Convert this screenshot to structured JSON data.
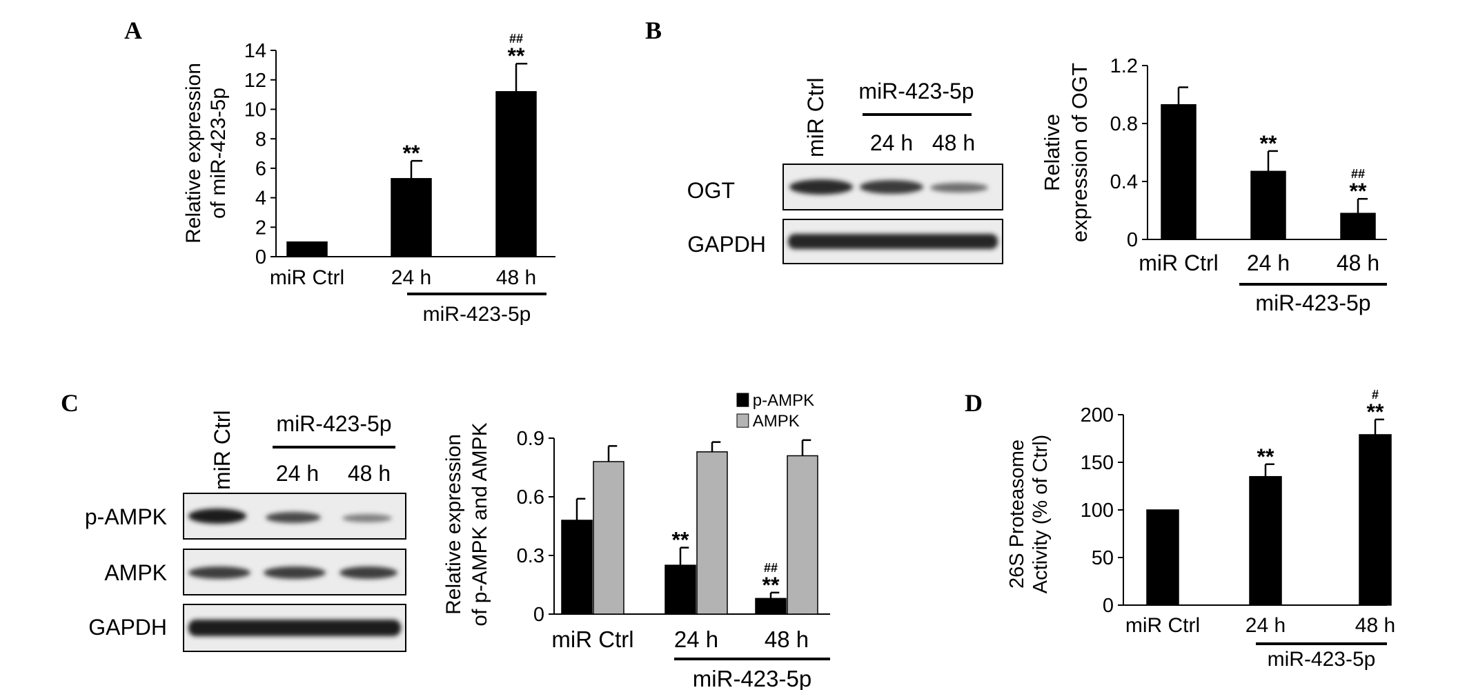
{
  "panel_labels": [
    "A",
    "B",
    "C",
    "D"
  ],
  "blots": {
    "B": {
      "lanes": [
        "miR Ctrl",
        "24 h",
        "48 h"
      ],
      "group": "miR-423-5p",
      "rows": [
        "OGT",
        "GAPDH"
      ]
    },
    "C": {
      "lanes": [
        "miR Ctrl",
        "24 h",
        "48 h"
      ],
      "group": "miR-423-5p",
      "rows": [
        "p-AMPK",
        "AMPK",
        "GAPDH"
      ]
    }
  },
  "colors": {
    "black": "#000000",
    "gray": "#b3b3b3"
  },
  "chart_data": [
    {
      "panel": "A",
      "type": "bar",
      "ylabel": "Relative expression of miR-423-5p",
      "categories": [
        "miR Ctrl",
        "24 h",
        "48 h"
      ],
      "group_label": "miR-423-5p",
      "ylim": [
        0,
        14
      ],
      "yticks": [
        0,
        2,
        4,
        6,
        8,
        10,
        12,
        14
      ],
      "series": [
        {
          "values": [
            1.0,
            5.3,
            11.2
          ],
          "errors": [
            0,
            1.2,
            1.9
          ],
          "color": "#000000"
        }
      ],
      "annotations": [
        {
          "category": "24 h",
          "text": "**"
        },
        {
          "category": "48 h",
          "text": "**"
        },
        {
          "category": "48 h",
          "text": "##"
        }
      ]
    },
    {
      "panel": "B",
      "type": "bar",
      "ylabel": "Relative expression of OGT",
      "categories": [
        "miR Ctrl",
        "24 h",
        "48 h"
      ],
      "group_label": "miR-423-5p",
      "ylim": [
        0,
        1.2
      ],
      "yticks": [
        0,
        0.4,
        0.8,
        1.2
      ],
      "series": [
        {
          "values": [
            0.93,
            0.47,
            0.18
          ],
          "errors": [
            0.12,
            0.14,
            0.1
          ],
          "color": "#000000"
        }
      ],
      "annotations": [
        {
          "category": "24 h",
          "text": "**"
        },
        {
          "category": "48 h",
          "text": "**"
        },
        {
          "category": "48 h",
          "text": "##"
        }
      ]
    },
    {
      "panel": "C",
      "type": "bar",
      "ylabel": "Relative expression of p-AMPK and AMPK",
      "categories": [
        "miR Ctrl",
        "24 h",
        "48 h"
      ],
      "group_label": "miR-423-5p",
      "ylim": [
        0,
        0.9
      ],
      "yticks": [
        0,
        0.3,
        0.6,
        0.9
      ],
      "legend": "top",
      "series": [
        {
          "name": "p-AMPK",
          "values": [
            0.48,
            0.25,
            0.08
          ],
          "errors": [
            0.11,
            0.09,
            0.03
          ],
          "color": "#000000"
        },
        {
          "name": "AMPK",
          "values": [
            0.78,
            0.83,
            0.81
          ],
          "errors": [
            0.08,
            0.05,
            0.08
          ],
          "color": "#b3b3b3"
        }
      ],
      "annotations": [
        {
          "category": "24 h",
          "text": "**"
        },
        {
          "category": "48 h",
          "text": "**"
        },
        {
          "category": "48 h",
          "text": "##"
        }
      ]
    },
    {
      "panel": "D",
      "type": "bar",
      "ylabel": "26S Proteasome Activity (% of Ctrl)",
      "categories": [
        "miR Ctrl",
        "24 h",
        "48 h"
      ],
      "group_label": "miR-423-5p",
      "ylim": [
        0,
        200
      ],
      "yticks": [
        0,
        50,
        100,
        150,
        200
      ],
      "series": [
        {
          "values": [
            100,
            135,
            179
          ],
          "errors": [
            0,
            13,
            16
          ],
          "color": "#000000"
        }
      ],
      "annotations": [
        {
          "category": "24 h",
          "text": "**"
        },
        {
          "category": "48 h",
          "text": "**"
        },
        {
          "category": "48 h",
          "text": "#"
        }
      ]
    }
  ]
}
